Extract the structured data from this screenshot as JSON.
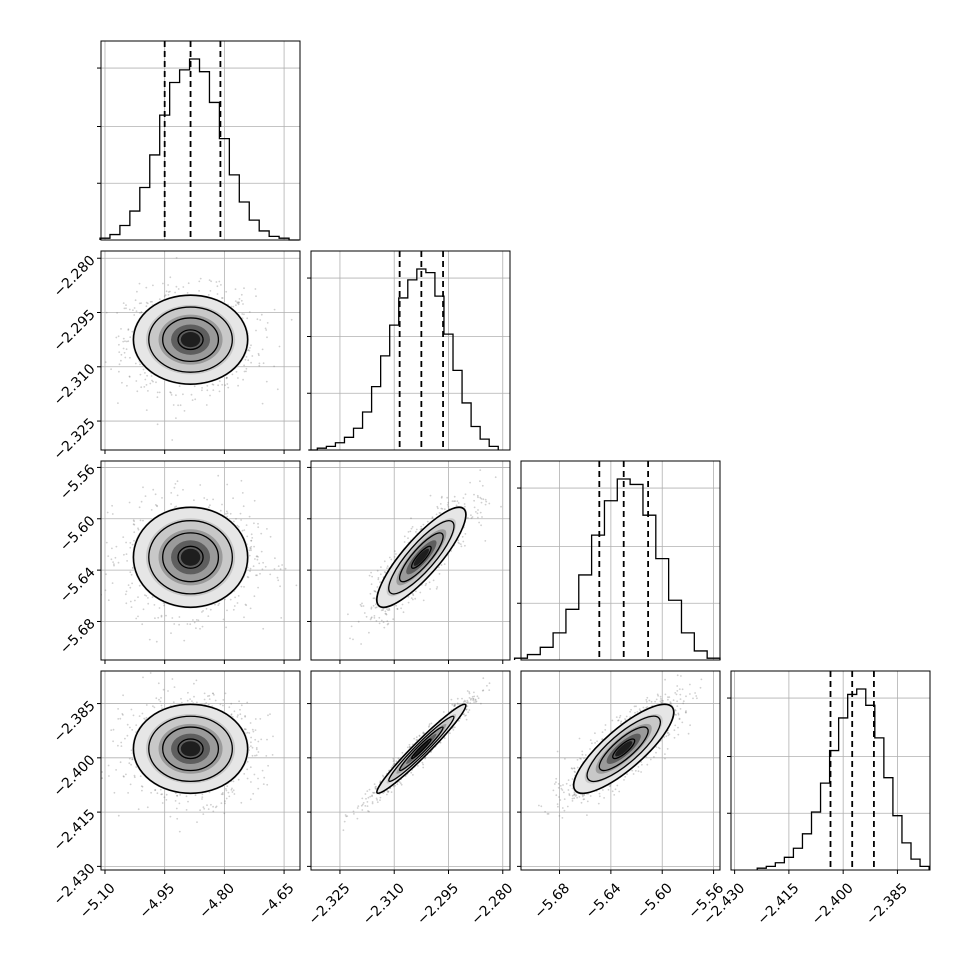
{
  "chart_data": {
    "type": "corner",
    "parameters": [
      {
        "range": [
          -5.11,
          -4.61
        ],
        "ticks": [
          -5.1,
          -4.95,
          -4.8,
          -4.65
        ],
        "tick_labels": [
          "−5.10",
          "−4.95",
          "−4.80",
          "−4.65"
        ],
        "quantiles": [
          -4.95,
          -4.885,
          -4.81
        ],
        "hist_x": [
          -5.1,
          -5.075,
          -5.05,
          -5.025,
          -5.0,
          -4.975,
          -4.95,
          -4.925,
          -4.9,
          -4.875,
          -4.85,
          -4.825,
          -4.8,
          -4.775,
          -4.75,
          -4.725,
          -4.7,
          -4.675,
          -4.65,
          -4.625
        ],
        "hist_y": [
          0.01,
          0.03,
          0.08,
          0.16,
          0.29,
          0.47,
          0.69,
          0.87,
          0.94,
          1.0,
          0.93,
          0.76,
          0.56,
          0.36,
          0.21,
          0.11,
          0.05,
          0.02,
          0.01,
          0.0
        ]
      },
      {
        "range": [
          -2.333,
          -2.278
        ],
        "ticks": [
          -2.28,
          -2.295,
          -2.31,
          -2.325
        ],
        "tick_labels": [
          "−2.280",
          "−2.295",
          "−2.310",
          "−2.325"
        ],
        "quantiles": [
          -2.3085,
          -2.3025,
          -2.2965
        ],
        "hist_x": [
          -2.3325,
          -2.33,
          -2.3275,
          -2.325,
          -2.3225,
          -2.32,
          -2.3175,
          -2.315,
          -2.3125,
          -2.31,
          -2.3075,
          -2.305,
          -2.3025,
          -2.3,
          -2.2975,
          -2.295,
          -2.2925,
          -2.29,
          -2.2875,
          -2.285,
          -2.2825
        ],
        "hist_y": [
          0.0,
          0.01,
          0.02,
          0.04,
          0.07,
          0.12,
          0.21,
          0.35,
          0.52,
          0.69,
          0.84,
          0.94,
          1.0,
          0.98,
          0.85,
          0.64,
          0.44,
          0.26,
          0.13,
          0.06,
          0.02
        ]
      },
      {
        "range": [
          -5.71,
          -5.555
        ],
        "ticks": [
          -5.56,
          -5.6,
          -5.64,
          -5.68
        ],
        "tick_labels": [
          "−5.56",
          "−5.60",
          "−5.64",
          "−5.68"
        ],
        "quantiles": [
          -5.649,
          -5.63,
          -5.611
        ],
        "hist_x": [
          -5.71,
          -5.7,
          -5.69,
          -5.68,
          -5.67,
          -5.66,
          -5.65,
          -5.64,
          -5.63,
          -5.62,
          -5.61,
          -5.6,
          -5.59,
          -5.58,
          -5.57,
          -5.56
        ],
        "hist_y": [
          0.01,
          0.03,
          0.07,
          0.15,
          0.28,
          0.47,
          0.69,
          0.88,
          1.0,
          0.97,
          0.8,
          0.56,
          0.33,
          0.15,
          0.05,
          0.01
        ]
      },
      {
        "range": [
          -2.431,
          -2.376
        ],
        "ticks": [
          -2.43,
          -2.415,
          -2.4,
          -2.385
        ],
        "tick_labels": [
          "−2.430",
          "−2.415",
          "−2.400",
          "−2.385"
        ],
        "quantiles": [
          -2.4035,
          -2.3975,
          -2.3915
        ],
        "hist_x": [
          -2.4225,
          -2.42,
          -2.4175,
          -2.415,
          -2.4125,
          -2.41,
          -2.4075,
          -2.405,
          -2.4025,
          -2.4,
          -2.3975,
          -2.395,
          -2.3925,
          -2.39,
          -2.3875,
          -2.385,
          -2.3825,
          -2.38,
          -2.3775
        ],
        "hist_y": [
          0.01,
          0.02,
          0.04,
          0.07,
          0.12,
          0.2,
          0.32,
          0.48,
          0.66,
          0.84,
          0.97,
          1.0,
          0.91,
          0.73,
          0.51,
          0.3,
          0.15,
          0.06,
          0.02
        ]
      }
    ],
    "correlations": [
      {
        "row": 1,
        "col": 0,
        "rho": 0.0
      },
      {
        "row": 2,
        "col": 0,
        "rho": 0.0
      },
      {
        "row": 2,
        "col": 1,
        "rho": 0.85
      },
      {
        "row": 3,
        "col": 0,
        "rho": 0.0
      },
      {
        "row": 3,
        "col": 1,
        "rho": 0.97
      },
      {
        "row": 3,
        "col": 2,
        "rho": 0.82
      }
    ],
    "grid": true,
    "colors": {
      "line": "#000000",
      "grid": "#b0b0b0",
      "density": "#000000"
    }
  }
}
